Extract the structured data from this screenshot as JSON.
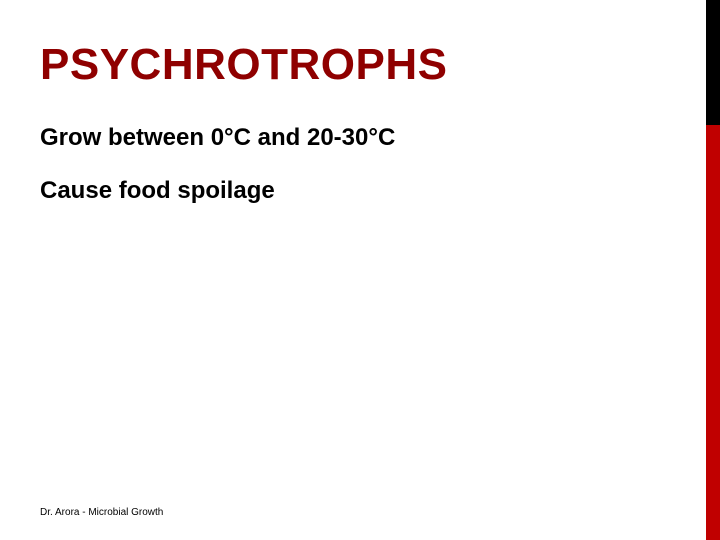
{
  "slide": {
    "title": "PSYCHROTROPHS",
    "title_color": "#8f0000",
    "bullets": [
      "Grow between 0°C and 20-30°C",
      "Cause food spoilage"
    ],
    "footer": "Dr. Arora -  Microbial Growth",
    "accent_top_color": "#000000",
    "accent_bottom_color": "#c00000",
    "background_color": "#ffffff"
  }
}
